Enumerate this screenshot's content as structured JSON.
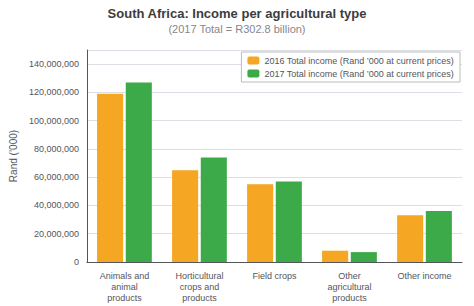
{
  "chart_data": {
    "type": "bar",
    "title": "South Africa: Income per agricultural type",
    "subtitle": "(2017 Total = R302.8 billion)",
    "ylabel": "Rand (’000)",
    "categories": [
      "Animals and\nanimal\nproducts",
      "Horticultural\ncrops and\nproducts",
      "Field crops",
      "Other\nagricultural\nproducts",
      "Other income"
    ],
    "series": [
      {
        "name": "2016 Total income (Rand ’000 at current prices)",
        "color": "#F5A623",
        "values": [
          119000000,
          65000000,
          55000000,
          8000000,
          33000000
        ]
      },
      {
        "name": "2017 Total income (Rand ’000 at current prices)",
        "color": "#3DAA4A",
        "values": [
          127000000,
          74000000,
          57000000,
          7000000,
          36000000
        ]
      }
    ],
    "ylim": [
      0,
      150000000
    ],
    "yticks": [
      0,
      {
        "value": 20000000,
        "label": "20,000,000"
      },
      {
        "value": 40000000,
        "label": "40,000,000"
      },
      {
        "value": 60000000,
        "label": "60,000,000"
      },
      {
        "value": 80000000,
        "label": "80,000,000"
      },
      {
        "value": 100000000,
        "label": "100,000,000"
      },
      {
        "value": 120000000,
        "label": "120,000,000"
      },
      {
        "value": 140000000,
        "label": "140,000,000"
      }
    ],
    "grid": true,
    "legend": "upper right"
  }
}
